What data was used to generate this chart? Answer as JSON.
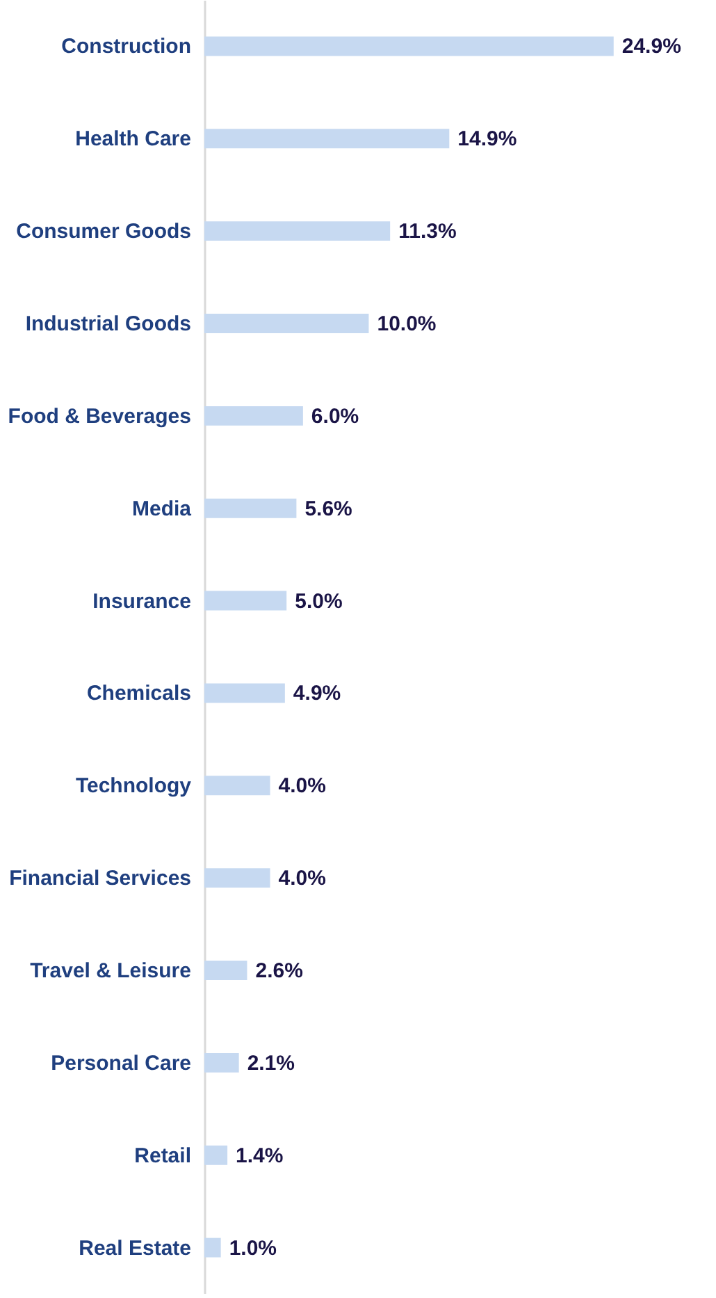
{
  "chart_data": {
    "type": "bar",
    "orientation": "horizontal",
    "color": "#c6d9f1",
    "categories": [
      "Construction",
      "Health Care",
      "Consumer Goods",
      "Industrial Goods",
      "Food & Beverages",
      "Media",
      "Insurance",
      "Chemicals",
      "Technology",
      "Financial Services",
      "Travel & Leisure",
      "Personal Care",
      "Retail",
      "Real Estate"
    ],
    "values": [
      24.9,
      14.9,
      11.3,
      10.0,
      6.0,
      5.6,
      5.0,
      4.9,
      4.0,
      4.0,
      2.6,
      2.1,
      1.4,
      1.0
    ],
    "value_labels": [
      "24.9%",
      "14.9%",
      "11.3%",
      "10.0%",
      "6.0%",
      "5.6%",
      "5.0%",
      "4.9%",
      "4.0%",
      "4.0%",
      "2.6%",
      "2.1%",
      "1.4%",
      "1.0%"
    ],
    "grid": false
  }
}
